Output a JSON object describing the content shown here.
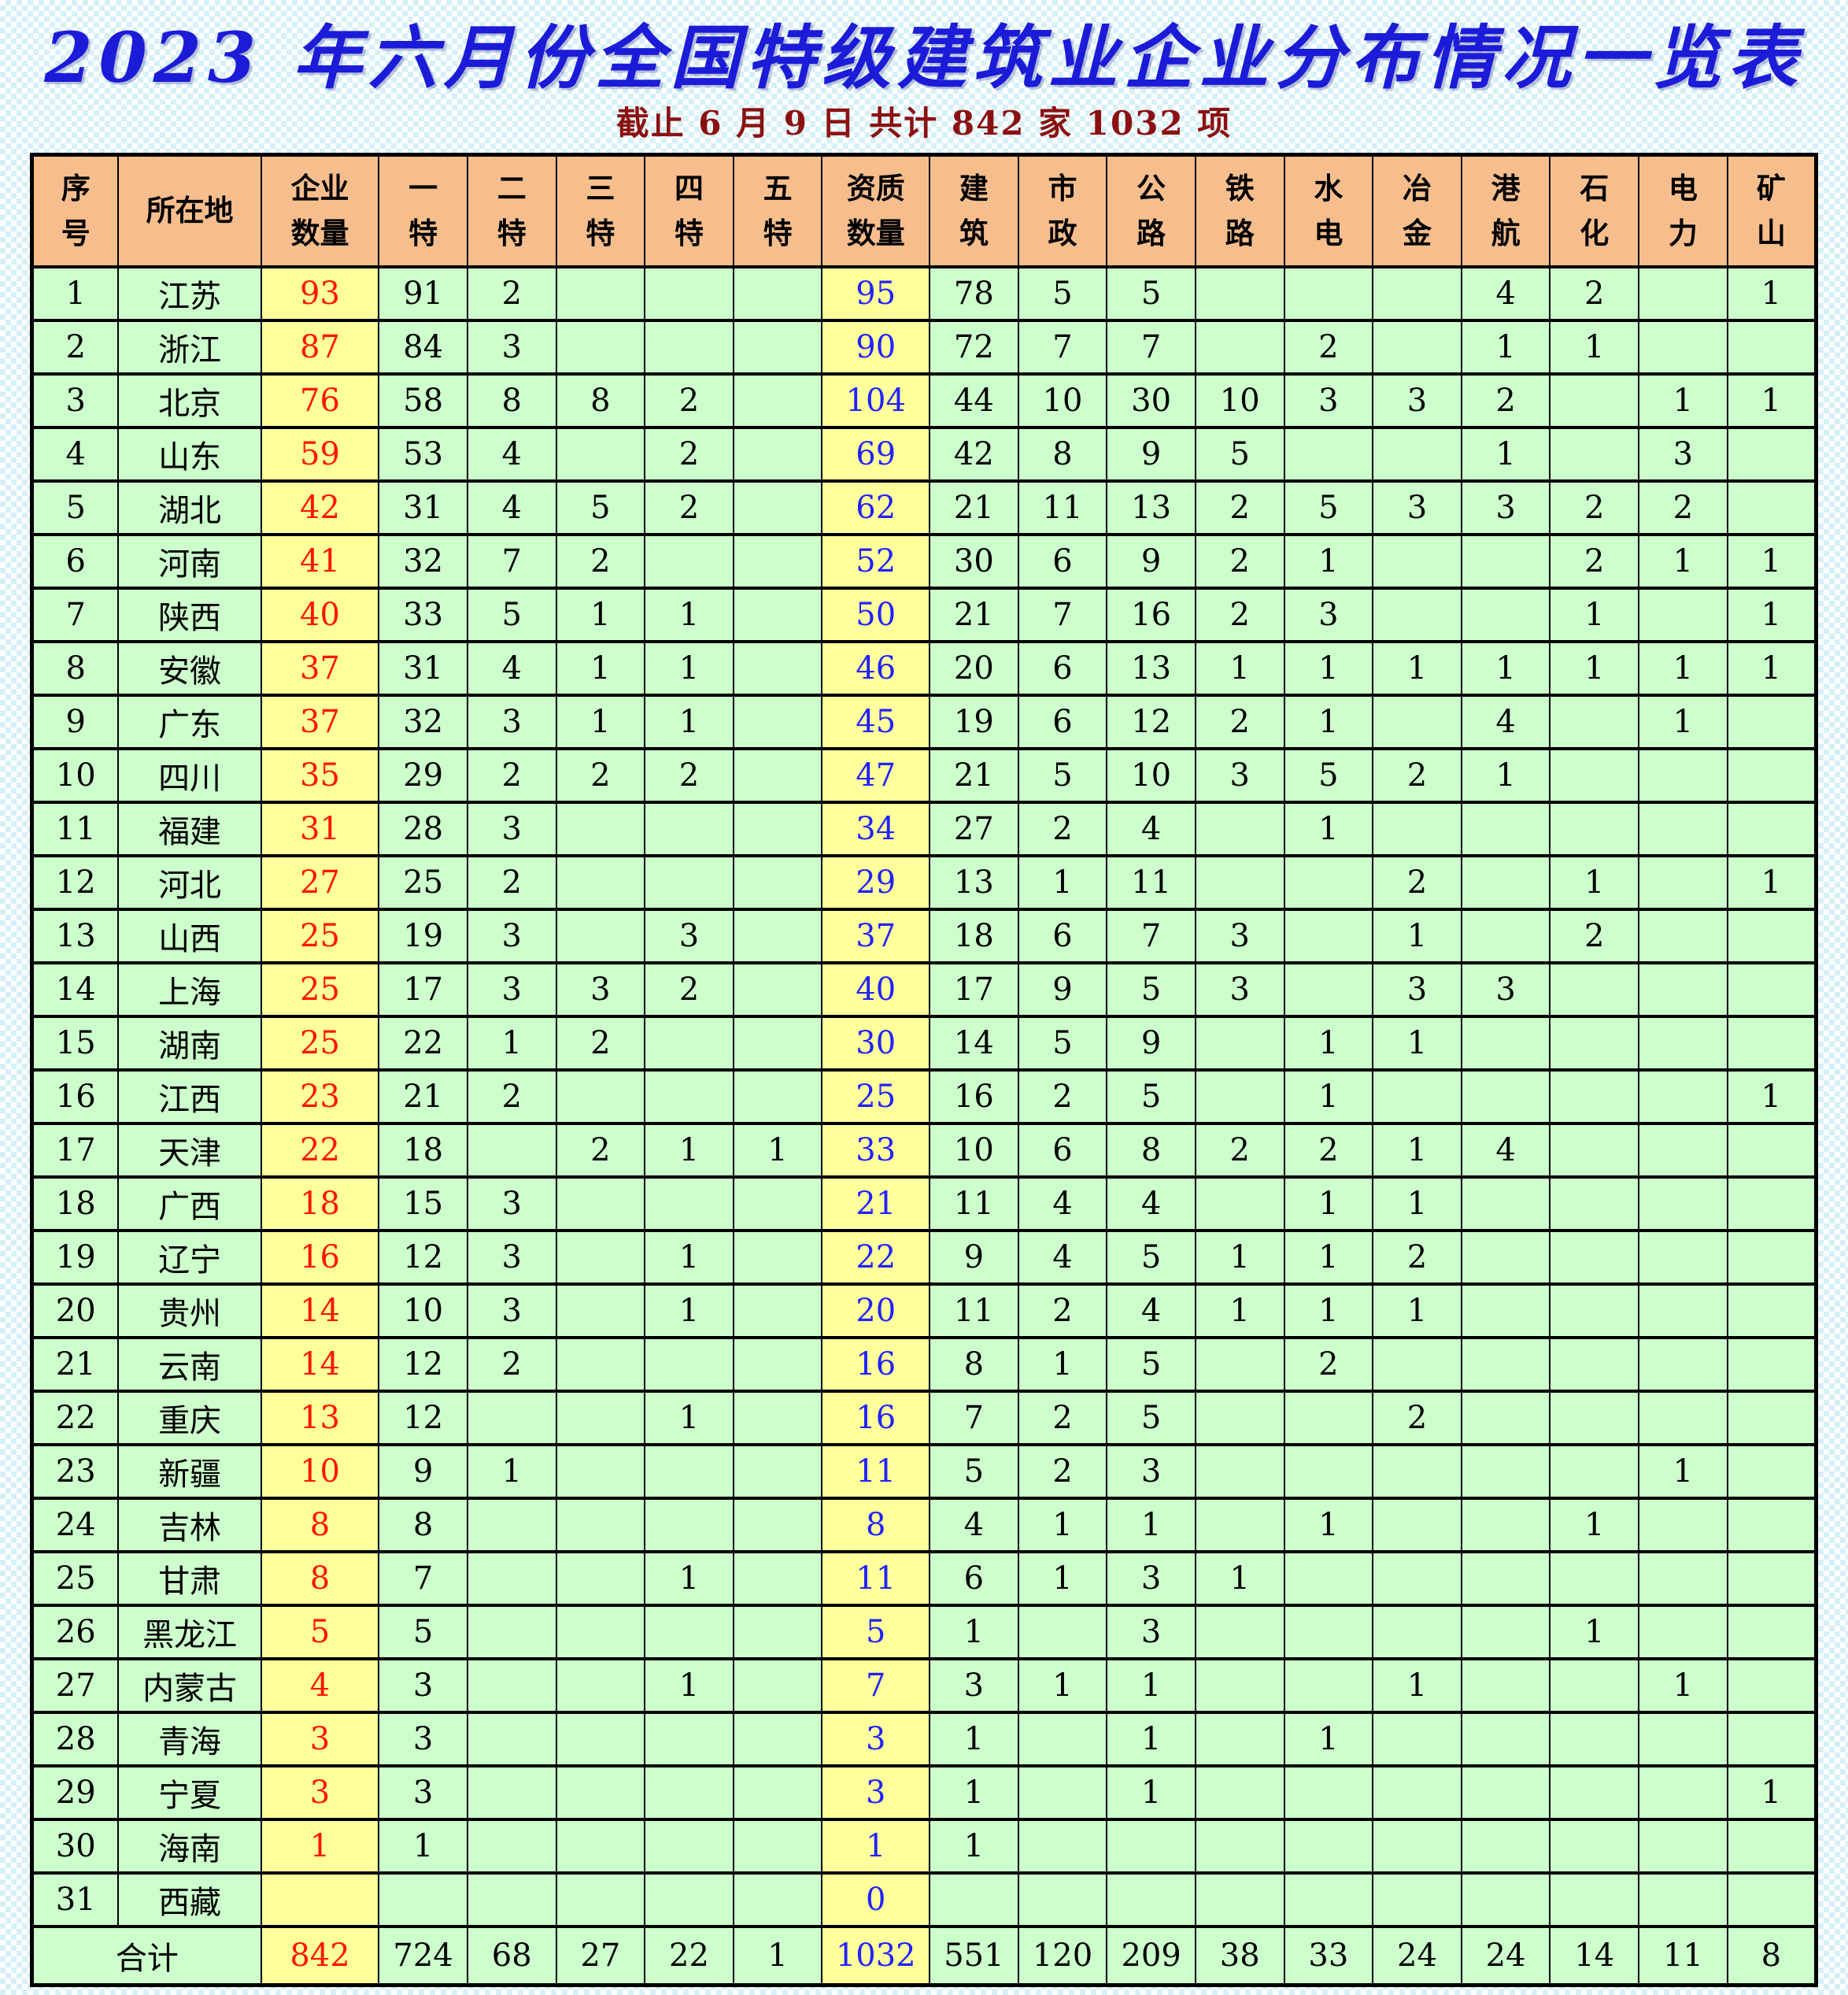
{
  "page": {
    "title": "2023 年六月份全国特级建筑业企业分布情况一览表",
    "subtitle": "截止 6 月 9 日  共计 842 家 1032 项"
  },
  "colors": {
    "title_blue": "#1b1bd8",
    "subtitle_dark_red": "#8b1111",
    "header_orange": "#f7be8d",
    "cell_green": "#ccffcc",
    "highlight_yellow": "#ffff9c",
    "enterprise_count_red": "#ff1400",
    "qualification_count_blue": "#2222ff"
  },
  "table": {
    "headers": [
      "序\n号",
      "所在地",
      "企业\n数量",
      "一\n特",
      "二\n特",
      "三\n特",
      "四\n特",
      "五\n特",
      "资质\n数量",
      "建\n筑",
      "市\n政",
      "公\n路",
      "铁\n路",
      "水\n电",
      "冶\n金",
      "港\n航",
      "石\n化",
      "电\n力",
      "矿\n山"
    ],
    "rows": [
      [
        "1",
        "江苏",
        "93",
        "91",
        "2",
        "",
        "",
        "",
        "95",
        "78",
        "5",
        "5",
        "",
        "",
        "",
        "4",
        "2",
        "",
        "1"
      ],
      [
        "2",
        "浙江",
        "87",
        "84",
        "3",
        "",
        "",
        "",
        "90",
        "72",
        "7",
        "7",
        "",
        "2",
        "",
        "1",
        "1",
        "",
        ""
      ],
      [
        "3",
        "北京",
        "76",
        "58",
        "8",
        "8",
        "2",
        "",
        "104",
        "44",
        "10",
        "30",
        "10",
        "3",
        "3",
        "2",
        "",
        "1",
        "1"
      ],
      [
        "4",
        "山东",
        "59",
        "53",
        "4",
        "",
        "2",
        "",
        "69",
        "42",
        "8",
        "9",
        "5",
        "",
        "",
        "1",
        "",
        "3",
        ""
      ],
      [
        "5",
        "湖北",
        "42",
        "31",
        "4",
        "5",
        "2",
        "",
        "62",
        "21",
        "11",
        "13",
        "2",
        "5",
        "3",
        "3",
        "2",
        "2",
        ""
      ],
      [
        "6",
        "河南",
        "41",
        "32",
        "7",
        "2",
        "",
        "",
        "52",
        "30",
        "6",
        "9",
        "2",
        "1",
        "",
        "",
        "2",
        "1",
        "1"
      ],
      [
        "7",
        "陕西",
        "40",
        "33",
        "5",
        "1",
        "1",
        "",
        "50",
        "21",
        "7",
        "16",
        "2",
        "3",
        "",
        "",
        "1",
        "",
        "1"
      ],
      [
        "8",
        "安徽",
        "37",
        "31",
        "4",
        "1",
        "1",
        "",
        "46",
        "20",
        "6",
        "13",
        "1",
        "1",
        "1",
        "1",
        "1",
        "1",
        "1"
      ],
      [
        "9",
        "广东",
        "37",
        "32",
        "3",
        "1",
        "1",
        "",
        "45",
        "19",
        "6",
        "12",
        "2",
        "1",
        "",
        "4",
        "",
        "1",
        ""
      ],
      [
        "10",
        "四川",
        "35",
        "29",
        "2",
        "2",
        "2",
        "",
        "47",
        "21",
        "5",
        "10",
        "3",
        "5",
        "2",
        "1",
        "",
        "",
        ""
      ],
      [
        "11",
        "福建",
        "31",
        "28",
        "3",
        "",
        "",
        "",
        "34",
        "27",
        "2",
        "4",
        "",
        "1",
        "",
        "",
        "",
        "",
        ""
      ],
      [
        "12",
        "河北",
        "27",
        "25",
        "2",
        "",
        "",
        "",
        "29",
        "13",
        "1",
        "11",
        "",
        "",
        "2",
        "",
        "1",
        "",
        "1"
      ],
      [
        "13",
        "山西",
        "25",
        "19",
        "3",
        "",
        "3",
        "",
        "37",
        "18",
        "6",
        "7",
        "3",
        "",
        "1",
        "",
        "2",
        "",
        ""
      ],
      [
        "14",
        "上海",
        "25",
        "17",
        "3",
        "3",
        "2",
        "",
        "40",
        "17",
        "9",
        "5",
        "3",
        "",
        "3",
        "3",
        "",
        "",
        ""
      ],
      [
        "15",
        "湖南",
        "25",
        "22",
        "1",
        "2",
        "",
        "",
        "30",
        "14",
        "5",
        "9",
        "",
        "1",
        "1",
        "",
        "",
        "",
        ""
      ],
      [
        "16",
        "江西",
        "23",
        "21",
        "2",
        "",
        "",
        "",
        "25",
        "16",
        "2",
        "5",
        "",
        "1",
        "",
        "",
        "",
        "",
        "1"
      ],
      [
        "17",
        "天津",
        "22",
        "18",
        "",
        "2",
        "1",
        "1",
        "33",
        "10",
        "6",
        "8",
        "2",
        "2",
        "1",
        "4",
        "",
        "",
        ""
      ],
      [
        "18",
        "广西",
        "18",
        "15",
        "3",
        "",
        "",
        "",
        "21",
        "11",
        "4",
        "4",
        "",
        "1",
        "1",
        "",
        "",
        "",
        ""
      ],
      [
        "19",
        "辽宁",
        "16",
        "12",
        "3",
        "",
        "1",
        "",
        "22",
        "9",
        "4",
        "5",
        "1",
        "1",
        "2",
        "",
        "",
        "",
        ""
      ],
      [
        "20",
        "贵州",
        "14",
        "10",
        "3",
        "",
        "1",
        "",
        "20",
        "11",
        "2",
        "4",
        "1",
        "1",
        "1",
        "",
        "",
        "",
        ""
      ],
      [
        "21",
        "云南",
        "14",
        "12",
        "2",
        "",
        "",
        "",
        "16",
        "8",
        "1",
        "5",
        "",
        "2",
        "",
        "",
        "",
        "",
        ""
      ],
      [
        "22",
        "重庆",
        "13",
        "12",
        "",
        "",
        "1",
        "",
        "16",
        "7",
        "2",
        "5",
        "",
        "",
        "2",
        "",
        "",
        "",
        ""
      ],
      [
        "23",
        "新疆",
        "10",
        "9",
        "1",
        "",
        "",
        "",
        "11",
        "5",
        "2",
        "3",
        "",
        "",
        "",
        "",
        "",
        "1",
        ""
      ],
      [
        "24",
        "吉林",
        "8",
        "8",
        "",
        "",
        "",
        "",
        "8",
        "4",
        "1",
        "1",
        "",
        "1",
        "",
        "",
        "1",
        "",
        ""
      ],
      [
        "25",
        "甘肃",
        "8",
        "7",
        "",
        "",
        "1",
        "",
        "11",
        "6",
        "1",
        "3",
        "1",
        "",
        "",
        "",
        "",
        "",
        ""
      ],
      [
        "26",
        "黑龙江",
        "5",
        "5",
        "",
        "",
        "",
        "",
        "5",
        "1",
        "",
        "3",
        "",
        "",
        "",
        "",
        "1",
        "",
        ""
      ],
      [
        "27",
        "内蒙古",
        "4",
        "3",
        "",
        "",
        "1",
        "",
        "7",
        "3",
        "1",
        "1",
        "",
        "",
        "1",
        "",
        "",
        "1",
        ""
      ],
      [
        "28",
        "青海",
        "3",
        "3",
        "",
        "",
        "",
        "",
        "3",
        "1",
        "",
        "1",
        "",
        "1",
        "",
        "",
        "",
        "",
        ""
      ],
      [
        "29",
        "宁夏",
        "3",
        "3",
        "",
        "",
        "",
        "",
        "3",
        "1",
        "",
        "1",
        "",
        "",
        "",
        "",
        "",
        "",
        "1"
      ],
      [
        "30",
        "海南",
        "1",
        "1",
        "",
        "",
        "",
        "",
        "1",
        "1",
        "",
        "",
        "",
        "",
        "",
        "",
        "",
        "",
        ""
      ],
      [
        "31",
        "西藏",
        "",
        "",
        "",
        "",
        "",
        "",
        "0",
        "",
        "",
        "",
        "",
        "",
        "",
        "",
        "",
        "",
        ""
      ]
    ],
    "total_label": "合计",
    "total": [
      "842",
      "724",
      "68",
      "27",
      "22",
      "1",
      "1032",
      "551",
      "120",
      "209",
      "38",
      "33",
      "24",
      "24",
      "14",
      "11",
      "8"
    ]
  }
}
